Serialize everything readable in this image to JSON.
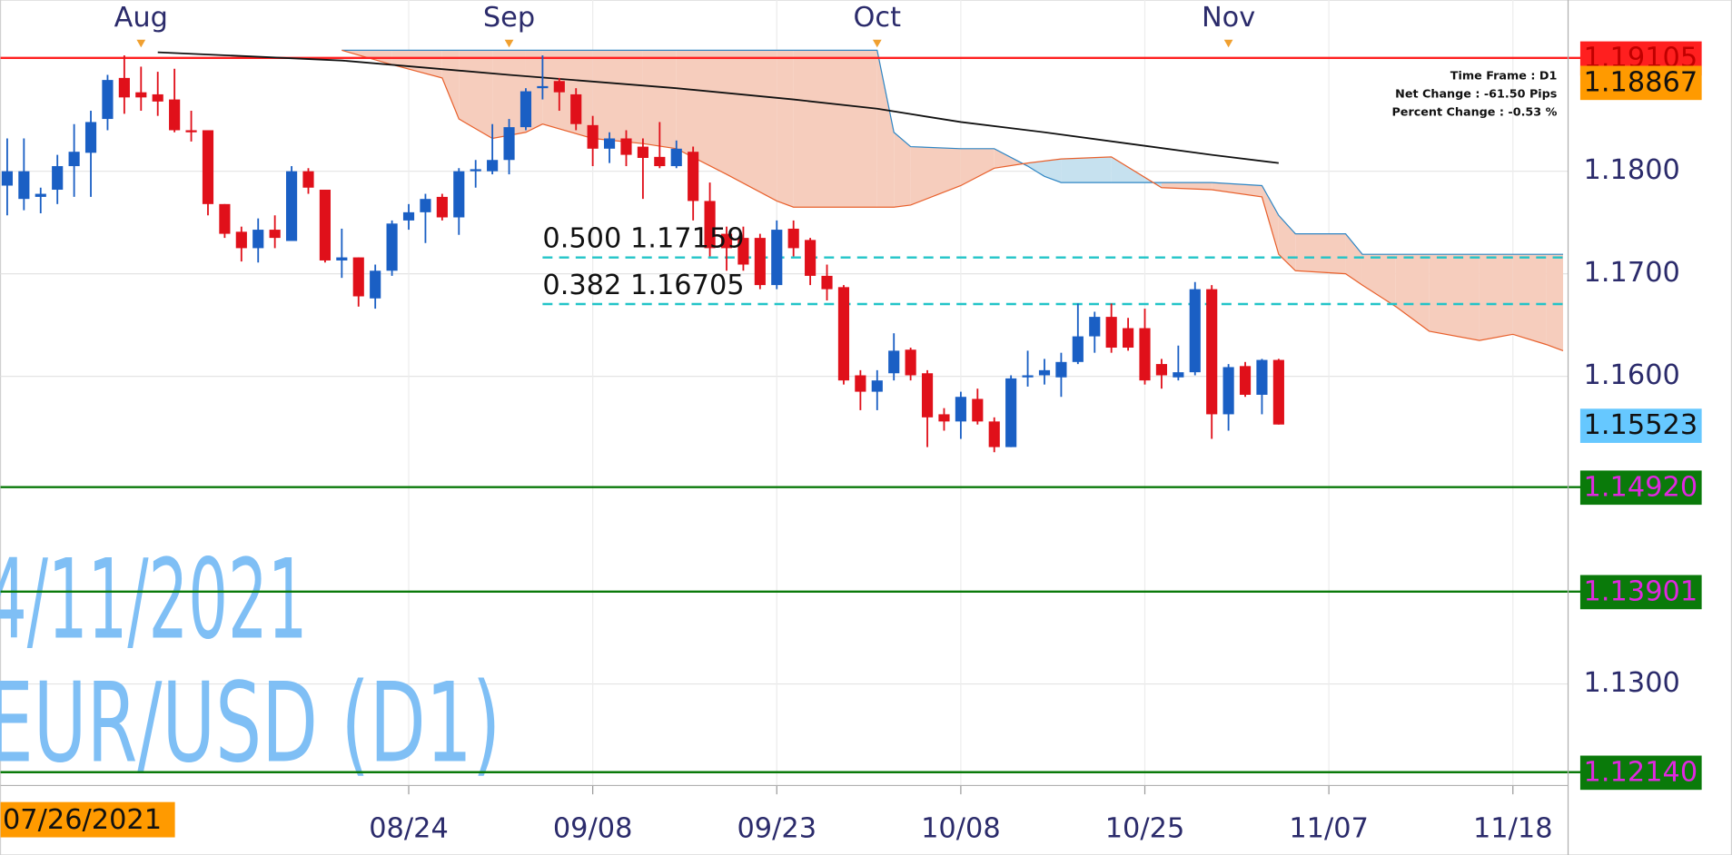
{
  "chart_data": {
    "type": "candlestick",
    "colors": {
      "up": "#1a5fc4",
      "down": "#e0101a"
    },
    "open": [
      1.1786,
      1.1773,
      1.1775,
      1.1782,
      1.1805,
      1.1818,
      1.1851,
      1.1891,
      1.1877,
      1.1875,
      1.187,
      1.184,
      1.184,
      1.1768,
      1.1741,
      1.1725,
      1.1743,
      1.1732,
      1.18,
      1.1782,
      1.1713,
      1.1716,
      1.1676,
      1.1703,
      1.1752,
      1.176,
      1.1775,
      1.1755,
      1.18,
      1.18,
      1.1811,
      1.1843,
      1.1881,
      1.1888,
      1.1875,
      1.1845,
      1.1822,
      1.1832,
      1.1824,
      1.1814,
      1.1805,
      1.1819,
      1.1771,
      1.1739,
      1.1735,
      1.1735,
      1.1689,
      1.1744,
      1.1733,
      1.1698,
      1.1687,
      1.1601,
      1.1585,
      1.1603,
      1.1626,
      1.1603,
      1.1563,
      1.1556,
      1.1578,
      1.1556,
      1.1531,
      1.1599,
      1.1601,
      1.1599,
      1.1614,
      1.1639,
      1.1658,
      1.1647,
      1.1647,
      1.1612,
      1.1599,
      1.1604,
      1.1685,
      1.1563,
      1.161,
      1.1582,
      1.1616
    ],
    "high": [
      1.1832,
      1.1832,
      1.1784,
      1.1816,
      1.1846,
      1.1859,
      1.1894,
      1.1913,
      1.1902,
      1.1897,
      1.19,
      1.1859,
      1.184,
      1.1768,
      1.1746,
      1.1754,
      1.1757,
      1.1805,
      1.1803,
      1.1782,
      1.1744,
      1.1716,
      1.1709,
      1.1752,
      1.1768,
      1.1778,
      1.1778,
      1.1803,
      1.1811,
      1.1846,
      1.1851,
      1.1881,
      1.1913,
      1.1891,
      1.1881,
      1.1854,
      1.1838,
      1.184,
      1.1832,
      1.1848,
      1.183,
      1.1824,
      1.1789,
      1.1746,
      1.1746,
      1.1739,
      1.1752,
      1.1752,
      1.1735,
      1.1709,
      1.1689,
      1.1606,
      1.1606,
      1.1642,
      1.1628,
      1.1606,
      1.1569,
      1.1585,
      1.1588,
      1.156,
      1.1601,
      1.1625,
      1.1617,
      1.1623,
      1.1671,
      1.1663,
      1.1671,
      1.1657,
      1.1666,
      1.1617,
      1.163,
      1.1692,
      1.1689,
      1.1612,
      1.1614,
      1.1617,
      1.1617
    ],
    "low": [
      1.1757,
      1.1762,
      1.1759,
      1.1768,
      1.1775,
      1.1775,
      1.184,
      1.1856,
      1.1859,
      1.1854,
      1.1838,
      1.1829,
      1.1757,
      1.1735,
      1.1712,
      1.1711,
      1.1725,
      1.1732,
      1.1778,
      1.1711,
      1.1696,
      1.1668,
      1.1666,
      1.1698,
      1.1743,
      1.173,
      1.1752,
      1.1738,
      1.1784,
      1.1797,
      1.1797,
      1.184,
      1.187,
      1.1859,
      1.184,
      1.1805,
      1.1808,
      1.1805,
      1.1773,
      1.1803,
      1.1803,
      1.1752,
      1.1717,
      1.1703,
      1.1703,
      1.1685,
      1.1685,
      1.1717,
      1.1689,
      1.1674,
      1.1592,
      1.1567,
      1.1567,
      1.1596,
      1.1596,
      1.1531,
      1.1547,
      1.1539,
      1.1553,
      1.1526,
      1.1531,
      1.159,
      1.1592,
      1.158,
      1.1612,
      1.1623,
      1.1623,
      1.1625,
      1.1592,
      1.1588,
      1.1596,
      1.1601,
      1.1539,
      1.1547,
      1.158,
      1.1563,
      1.1553
    ],
    "close": [
      1.18,
      1.18,
      1.1778,
      1.1805,
      1.1819,
      1.1848,
      1.1889,
      1.1872,
      1.1872,
      1.1868,
      1.184,
      1.1838,
      1.1768,
      1.1739,
      1.1725,
      1.1743,
      1.1735,
      1.18,
      1.1784,
      1.1713,
      1.1716,
      1.1678,
      1.1703,
      1.1749,
      1.176,
      1.1773,
      1.1755,
      1.18,
      1.1802,
      1.1811,
      1.1843,
      1.1878,
      1.1883,
      1.1877,
      1.1846,
      1.1822,
      1.1832,
      1.1816,
      1.1813,
      1.1805,
      1.1822,
      1.1771,
      1.1725,
      1.1725,
      1.1709,
      1.1689,
      1.1743,
      1.1725,
      1.1698,
      1.1685,
      1.1596,
      1.1585,
      1.1596,
      1.1625,
      1.1601,
      1.156,
      1.1556,
      1.158,
      1.1556,
      1.1531,
      1.1598,
      1.1601,
      1.1606,
      1.1614,
      1.1639,
      1.1658,
      1.1628,
      1.1628,
      1.1596,
      1.1601,
      1.1604,
      1.1685,
      1.1563,
      1.1609,
      1.1582,
      1.1616,
      1.1553
    ],
    "xlim": [
      -0.4,
      93.3
    ],
    "xticks": [
      {
        "value": 24,
        "label": "08/24"
      },
      {
        "value": 35,
        "label": "09/08"
      },
      {
        "value": 46,
        "label": "09/23"
      },
      {
        "value": 57,
        "label": "10/08"
      },
      {
        "value": 68,
        "label": "10/25"
      },
      {
        "value": 79,
        "label": "11/07"
      },
      {
        "value": 90,
        "label": "11/18"
      }
    ],
    "month_ticks": [
      {
        "value": 8,
        "label": "Aug"
      },
      {
        "value": 30,
        "label": "Sep"
      },
      {
        "value": 52,
        "label": "Oct"
      },
      {
        "value": 73,
        "label": "Nov"
      }
    ],
    "ylim": [
      1.1201,
      1.1967
    ],
    "yticks": [
      {
        "value": 1.18,
        "label": "1.1800"
      },
      {
        "value": 1.17,
        "label": "1.1700"
      },
      {
        "value": 1.16,
        "label": "1.1600"
      },
      {
        "value": 1.13,
        "label": "1.1300"
      }
    ],
    "grid": true,
    "moving_average": {
      "color": "#111111",
      "x": [
        9,
        20,
        30,
        40,
        47,
        52,
        57,
        62,
        67,
        72,
        76
      ],
      "values": [
        1.1916,
        1.1908,
        1.1894,
        1.1881,
        1.187,
        1.1861,
        1.1848,
        1.1838,
        1.1827,
        1.1816,
        1.1808
      ]
    },
    "cloud": {
      "span_a_color": "#2f86c4",
      "span_b_color": "#e8602c",
      "bull_fill": "#f6cdbd",
      "bear_fill": "#c6e1ef",
      "x": [
        20,
        23,
        26,
        27,
        29,
        31,
        32,
        35,
        38,
        40,
        43,
        46,
        47,
        52,
        53,
        54,
        57,
        59,
        61,
        62,
        63,
        66,
        69,
        72,
        75,
        76,
        77,
        80,
        81,
        83,
        85,
        88,
        90,
        92,
        93
      ],
      "span_a": [
        1.1918,
        1.1918,
        1.1918,
        1.1918,
        1.1918,
        1.1918,
        1.1918,
        1.1918,
        1.1918,
        1.1918,
        1.1918,
        1.1918,
        1.1918,
        1.1918,
        1.1838,
        1.1824,
        1.1822,
        1.1822,
        1.1805,
        1.1795,
        1.1789,
        1.1789,
        1.1789,
        1.1789,
        1.1786,
        1.1757,
        1.1739,
        1.1739,
        1.1719,
        1.1719,
        1.1719,
        1.1719,
        1.1719,
        1.1719,
        1.1719
      ],
      "span_b": [
        1.1918,
        1.1904,
        1.1891,
        1.1851,
        1.1832,
        1.1838,
        1.1846,
        1.1832,
        1.1827,
        1.1822,
        1.1797,
        1.1771,
        1.1765,
        1.1765,
        1.1765,
        1.1767,
        1.1786,
        1.1803,
        1.1808,
        1.181,
        1.1812,
        1.1814,
        1.1784,
        1.1782,
        1.1775,
        1.1719,
        1.1703,
        1.17,
        1.1689,
        1.1668,
        1.1644,
        1.1635,
        1.1641,
        1.1631,
        1.1625
      ]
    },
    "levels": [
      {
        "value": 1.19105,
        "label": "1.19105",
        "color": "#ff1f1f",
        "text_color": "#c00000",
        "line": true
      },
      {
        "value": 1.18867,
        "label": "1.18867",
        "color": "#ff9a00",
        "text_color": "#111111",
        "line": false
      },
      {
        "value": 1.15523,
        "label": "1.15523",
        "color": "#66c8ff",
        "text_color": "#111111",
        "line": false
      },
      {
        "value": 1.1492,
        "label": "1.14920",
        "color": "#0a7a0a",
        "text_color": "#e028e0",
        "line": true
      },
      {
        "value": 1.13901,
        "label": "1.13901",
        "color": "#0a7a0a",
        "text_color": "#e028e0",
        "line": true
      },
      {
        "value": 1.1214,
        "label": "1.12140",
        "color": "#0a7a0a",
        "text_color": "#e028e0",
        "line": true
      }
    ],
    "fib": {
      "color": "#22c4c8",
      "start": 32,
      "lines": [
        {
          "value": 1.17159,
          "label": "0.500 1.17159"
        },
        {
          "value": 1.16705,
          "label": "0.382 1.16705"
        }
      ]
    },
    "info": [
      "Time Frame : D1",
      "Net Change : -61.50 Pips",
      "Percent Change : -0.53 %"
    ],
    "watermark": [
      "4/11/2021",
      "EUR/USD (D1)"
    ],
    "cursor_label": "07/26/2021"
  }
}
